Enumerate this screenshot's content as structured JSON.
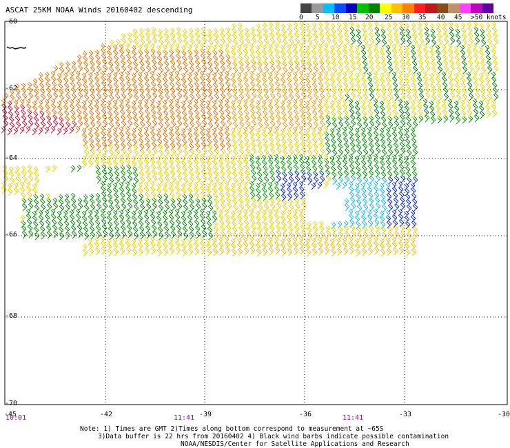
{
  "title": "ASCAT 25KM NOAA Winds 20160402 descending",
  "legend": {
    "colors": [
      "#444444",
      "#9a9a9a",
      "#00c0ff",
      "#0050ff",
      "#0000c0",
      "#00c000",
      "#008000",
      "#ffff00",
      "#ffc000",
      "#ff8000",
      "#ff2020",
      "#c01818",
      "#8a4a1a",
      "#c0906a",
      "#ff40ff",
      "#c000c0",
      "#6000a0"
    ],
    "ticks": [
      "0",
      "5",
      "10",
      "15",
      "20",
      "25",
      "30",
      "35",
      "40",
      "45",
      ">50 knots"
    ]
  },
  "lat_labels": [
    "-60",
    "-62",
    "-64",
    "-66",
    "-68",
    "-70"
  ],
  "lon_labels": [
    "-45",
    "-42",
    "-39",
    "-36",
    "-33",
    "-30"
  ],
  "time_labels": [
    "10:01",
    "11:41",
    "11:41"
  ],
  "notes": [
    "Note: 1) Times are GMT 2)Times along bottom correspond to measurement at ~65S",
    "3)Data buffer is 22 hrs from 20160402 4) Black wind barbs indicate possible contamination",
    "NOAA/NESDIS/Center for Satellite Applications and Research"
  ],
  "wind_barb_icon": "wind-barb-icon",
  "coastline_icon": "coastline-icon"
}
